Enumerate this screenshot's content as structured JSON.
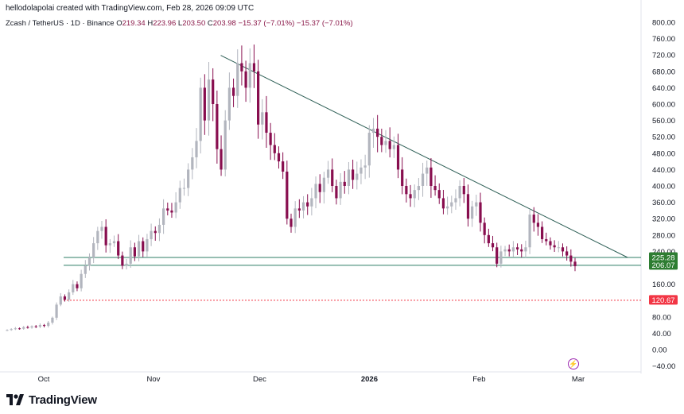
{
  "attribution": "hellodolapolai created with TradingView.com, Feb 28, 2026 09:09 UTC",
  "legend": {
    "symbol": "Zcash / TetherUS · 1D · Binance",
    "open_label": "O",
    "open": "219.34",
    "high_label": "H",
    "high": "223.96",
    "low_label": "L",
    "low": "203.50",
    "close_label": "C",
    "close": "203.98",
    "change": "−15.37 (−7.01%)",
    "change2": "−15.37 (−7.01%)"
  },
  "brand": {
    "name": "TradingView",
    "icon": "tradingview-logo-icon"
  },
  "event_icon": "lightning-icon",
  "colors": {
    "up": "#b2b5be",
    "down": "#880e4f",
    "trendline": "#2e5f56",
    "level_line": "#2e7d66",
    "level_label_bg": "#2e7d32",
    "low_line": "#f23645",
    "axis_text": "#131722"
  },
  "chart_data": {
    "type": "candlestick",
    "title": "Zcash / TetherUS · 1D · Binance",
    "y_ticks": [
      "800.00",
      "760.00",
      "720.00",
      "680.00",
      "640.00",
      "600.00",
      "560.00",
      "520.00",
      "480.00",
      "440.00",
      "400.00",
      "360.00",
      "320.00",
      "280.00",
      "240.00",
      "160.00",
      "120.00",
      "80.00",
      "40.00",
      "0.00",
      "−40.00"
    ],
    "y_tick_values": [
      800,
      760,
      720,
      680,
      640,
      600,
      560,
      520,
      480,
      440,
      400,
      360,
      320,
      280,
      240,
      160,
      120,
      80,
      40,
      0,
      -40
    ],
    "x_ticks": [
      {
        "label": "Oct",
        "date": "2025-10-01"
      },
      {
        "label": "Nov",
        "date": "2025-11-01"
      },
      {
        "label": "Dec",
        "date": "2025-12-01"
      },
      {
        "label": "2026",
        "date": "2026-01-01"
      },
      {
        "label": "Feb",
        "date": "2026-02-01"
      },
      {
        "label": "Mar",
        "date": "2026-03-01"
      }
    ],
    "ylim": [
      -55,
      810
    ],
    "xlim": [
      "2025-09-18",
      "2026-03-22"
    ],
    "levels": [
      {
        "value": 225.28,
        "label": "225.28",
        "style": "solid"
      },
      {
        "value": 206.07,
        "label": "206.07",
        "style": "solid"
      },
      {
        "value": 120.67,
        "label": "120.67",
        "style": "dotted"
      }
    ],
    "trendline": {
      "from": {
        "date": "2025-11-20",
        "value": 719
      },
      "to": {
        "date": "2026-03-15",
        "value": 225
      }
    },
    "closes": [
      48,
      50,
      52,
      51,
      55,
      54,
      57,
      56,
      60,
      58,
      66,
      78,
      110,
      130,
      122,
      140,
      160,
      150,
      185,
      205,
      225,
      260,
      290,
      300,
      255,
      260,
      265,
      230,
      205,
      210,
      250,
      228,
      265,
      240,
      270,
      290,
      285,
      305,
      345,
      340,
      335,
      360,
      395,
      395,
      440,
      470,
      510,
      640,
      560,
      660,
      600,
      490,
      440,
      560,
      640,
      620,
      700,
      680,
      640,
      700,
      680,
      550,
      580,
      530,
      500,
      480,
      460,
      435,
      320,
      300,
      345,
      340,
      360,
      350,
      370,
      405,
      385,
      420,
      440,
      400,
      370,
      410,
      400,
      440,
      415,
      430,
      445,
      450,
      530,
      540,
      520,
      500,
      510,
      490,
      500,
      440,
      400,
      380,
      370,
      390,
      400,
      430,
      445,
      400,
      390,
      370,
      345,
      350,
      360,
      370,
      400,
      380,
      320,
      350,
      360,
      310,
      280,
      260,
      250,
      210,
      240,
      245,
      240,
      250,
      245,
      240,
      250,
      330,
      310,
      300,
      270,
      265,
      255,
      250,
      250,
      240,
      230,
      215,
      203.98
    ],
    "series": [
      {
        "name": "Zcash / TetherUS",
        "type": "candlestick"
      }
    ]
  }
}
